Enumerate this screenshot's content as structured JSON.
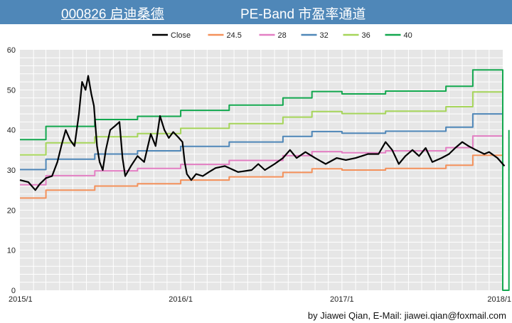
{
  "header": {
    "code_title": "000826 启迪桑德",
    "main_title": "PE-Band 市盈率通道"
  },
  "footer": {
    "credit": "by Jiawei Qian, E-Mail: jiawei.qian@foxmail.com"
  },
  "colors": {
    "header_bg": "#4f87b8",
    "plot_bg": "#e6e6e6",
    "grid": "#ffffff",
    "Close": "#000000",
    "24.5": "#f4915b",
    "28": "#e37fc3",
    "32": "#4f87b8",
    "36": "#a6d55a",
    "40": "#13a84f"
  },
  "chart_data": {
    "type": "line",
    "xlim": [
      "2015/1",
      "2018/1"
    ],
    "ylim": [
      0,
      60
    ],
    "y_ticks": [
      0,
      10,
      20,
      30,
      40,
      50,
      60
    ],
    "x_tick_labels": [
      "2015/1",
      "2016/1",
      "2017/1",
      "2018/1"
    ],
    "grid": true,
    "legend_position": "top",
    "legend": [
      "Close",
      "24.5",
      "28",
      "32",
      "36",
      "40"
    ],
    "series": [
      {
        "name": "Close",
        "points": [
          [
            "2015/1",
            27.5
          ],
          [
            "2015/1/20",
            27.0
          ],
          [
            "2015/2/5",
            25.0
          ],
          [
            "2015/2/15",
            26.5
          ],
          [
            "2015/3/1",
            28.0
          ],
          [
            "2015/3/15",
            28.5
          ],
          [
            "2015/3/27",
            32.0
          ],
          [
            "2015/4/5",
            36.0
          ],
          [
            "2015/4/15",
            40.0
          ],
          [
            "2015/4/25",
            37.5
          ],
          [
            "2015/5/5",
            36.0
          ],
          [
            "2015/5/15",
            44.0
          ],
          [
            "2015/5/22",
            52.0
          ],
          [
            "2015/5/30",
            50.0
          ],
          [
            "2015/6/5",
            53.5
          ],
          [
            "2015/6/12",
            49.0
          ],
          [
            "2015/6/18",
            46.0
          ],
          [
            "2015/6/25",
            36.0
          ],
          [
            "2015/7/1",
            32.0
          ],
          [
            "2015/7/8",
            30.0
          ],
          [
            "2015/7/15",
            35.0
          ],
          [
            "2015/7/25",
            40.0
          ],
          [
            "2015/8/5",
            41.0
          ],
          [
            "2015/8/15",
            42.0
          ],
          [
            "2015/8/22",
            33.0
          ],
          [
            "2015/8/28",
            28.5
          ],
          [
            "2015/9/10",
            31.0
          ],
          [
            "2015/9/25",
            33.5
          ],
          [
            "2015/10/10",
            32.0
          ],
          [
            "2015/10/25",
            39.0
          ],
          [
            "2015/11/5",
            36.0
          ],
          [
            "2015/11/15",
            43.5
          ],
          [
            "2015/11/25",
            40.0
          ],
          [
            "2015/12/5",
            38.0
          ],
          [
            "2015/12/15",
            39.5
          ],
          [
            "2015/12/28",
            38.0
          ],
          [
            "2016/1/5",
            37.0
          ],
          [
            "2016/1/10",
            32.0
          ],
          [
            "2016/1/15",
            29.0
          ],
          [
            "2016/1/25",
            27.5
          ],
          [
            "2016/2/5",
            29.0
          ],
          [
            "2016/2/20",
            28.5
          ],
          [
            "2016/3/5",
            29.5
          ],
          [
            "2016/3/20",
            30.5
          ],
          [
            "2016/4/10",
            31.0
          ],
          [
            "2016/5/10",
            29.5
          ],
          [
            "2016/6/10",
            30.0
          ],
          [
            "2016/6/25",
            31.5
          ],
          [
            "2016/7/10",
            30.0
          ],
          [
            "2016/8/1",
            31.5
          ],
          [
            "2016/8/20",
            33.0
          ],
          [
            "2016/9/5",
            35.0
          ],
          [
            "2016/9/20",
            33.0
          ],
          [
            "2016/10/10",
            34.5
          ],
          [
            "2016/11/1",
            33.0
          ],
          [
            "2016/11/25",
            31.5
          ],
          [
            "2016/12/20",
            33.0
          ],
          [
            "2017/1/10",
            32.5
          ],
          [
            "2017/2/1",
            33.0
          ],
          [
            "2017/3/1",
            34.0
          ],
          [
            "2017/3/25",
            34.0
          ],
          [
            "2017/4/10",
            37.0
          ],
          [
            "2017/4/25",
            35.0
          ],
          [
            "2017/5/10",
            31.5
          ],
          [
            "2017/5/25",
            33.5
          ],
          [
            "2017/6/10",
            35.0
          ],
          [
            "2017/6/25",
            33.5
          ],
          [
            "2017/7/10",
            35.5
          ],
          [
            "2017/7/25",
            32.0
          ],
          [
            "2017/8/15",
            33.0
          ],
          [
            "2017/9/1",
            34.0
          ],
          [
            "2017/9/15",
            35.5
          ],
          [
            "2017/10/1",
            37.0
          ],
          [
            "2017/10/15",
            36.0
          ],
          [
            "2017/11/1",
            35.0
          ],
          [
            "2017/11/20",
            34.0
          ],
          [
            "2017/12/1",
            34.5
          ],
          [
            "2017/12/20",
            33.0
          ],
          [
            "2018/1/5",
            31.0
          ]
        ]
      },
      {
        "name": "24.5",
        "points": [
          [
            "2015/1",
            23.0
          ],
          [
            "2015/3/1",
            23.0
          ],
          [
            "2015/3/1",
            25.0
          ],
          [
            "2015/6/20",
            25.0
          ],
          [
            "2015/6/20",
            26.0
          ],
          [
            "2015/9/25",
            26.0
          ],
          [
            "2015/9/25",
            26.6
          ],
          [
            "2016/1/1",
            26.6
          ],
          [
            "2016/1/1",
            27.5
          ],
          [
            "2016/4/20",
            27.5
          ],
          [
            "2016/4/20",
            28.3
          ],
          [
            "2016/8/20",
            28.3
          ],
          [
            "2016/8/20",
            29.4
          ],
          [
            "2016/10/25",
            29.4
          ],
          [
            "2016/10/25",
            30.3
          ],
          [
            "2017/1/1",
            30.3
          ],
          [
            "2017/1/1",
            30.0
          ],
          [
            "2017/4/10",
            30.0
          ],
          [
            "2017/4/10",
            30.4
          ],
          [
            "2017/8/25",
            30.4
          ],
          [
            "2017/8/25",
            31.2
          ],
          [
            "2017/10/25",
            31.2
          ],
          [
            "2017/10/25",
            33.7
          ],
          [
            "2018/1/1",
            33.7
          ]
        ]
      },
      {
        "name": "28",
        "points": [
          [
            "2015/1",
            26.3
          ],
          [
            "2015/3/1",
            26.3
          ],
          [
            "2015/3/1",
            28.6
          ],
          [
            "2015/6/20",
            28.6
          ],
          [
            "2015/6/20",
            29.8
          ],
          [
            "2015/9/25",
            29.8
          ],
          [
            "2015/9/25",
            30.4
          ],
          [
            "2016/1/1",
            30.4
          ],
          [
            "2016/1/1",
            31.4
          ],
          [
            "2016/4/20",
            31.4
          ],
          [
            "2016/4/20",
            32.4
          ],
          [
            "2016/8/20",
            32.4
          ],
          [
            "2016/8/20",
            33.6
          ],
          [
            "2016/10/25",
            33.6
          ],
          [
            "2016/10/25",
            34.6
          ],
          [
            "2017/1/1",
            34.6
          ],
          [
            "2017/1/1",
            34.3
          ],
          [
            "2017/4/10",
            34.3
          ],
          [
            "2017/4/10",
            34.8
          ],
          [
            "2017/8/25",
            34.8
          ],
          [
            "2017/8/25",
            35.6
          ],
          [
            "2017/10/25",
            35.6
          ],
          [
            "2017/10/25",
            38.5
          ],
          [
            "2018/1/1",
            38.5
          ]
        ]
      },
      {
        "name": "32",
        "points": [
          [
            "2015/1",
            30.1
          ],
          [
            "2015/3/1",
            30.1
          ],
          [
            "2015/3/1",
            32.7
          ],
          [
            "2015/6/20",
            32.7
          ],
          [
            "2015/6/20",
            34.0
          ],
          [
            "2015/9/25",
            34.0
          ],
          [
            "2015/9/25",
            34.8
          ],
          [
            "2016/1/1",
            34.8
          ],
          [
            "2016/1/1",
            35.9
          ],
          [
            "2016/4/20",
            35.9
          ],
          [
            "2016/4/20",
            37.0
          ],
          [
            "2016/8/20",
            37.0
          ],
          [
            "2016/8/20",
            38.4
          ],
          [
            "2016/10/25",
            38.4
          ],
          [
            "2016/10/25",
            39.6
          ],
          [
            "2017/1/1",
            39.6
          ],
          [
            "2017/1/1",
            39.2
          ],
          [
            "2017/4/10",
            39.2
          ],
          [
            "2017/4/10",
            39.7
          ],
          [
            "2017/8/25",
            39.7
          ],
          [
            "2017/8/25",
            40.7
          ],
          [
            "2017/10/25",
            40.7
          ],
          [
            "2017/10/25",
            44.0
          ],
          [
            "2018/1/1",
            44.0
          ]
        ]
      },
      {
        "name": "36",
        "points": [
          [
            "2015/1",
            33.8
          ],
          [
            "2015/3/1",
            33.8
          ],
          [
            "2015/3/1",
            36.8
          ],
          [
            "2015/6/20",
            36.8
          ],
          [
            "2015/6/20",
            38.3
          ],
          [
            "2015/9/25",
            38.3
          ],
          [
            "2015/9/25",
            39.1
          ],
          [
            "2016/1/1",
            39.1
          ],
          [
            "2016/1/1",
            40.4
          ],
          [
            "2016/4/20",
            40.4
          ],
          [
            "2016/4/20",
            41.6
          ],
          [
            "2016/8/20",
            41.6
          ],
          [
            "2016/8/20",
            43.2
          ],
          [
            "2016/10/25",
            43.2
          ],
          [
            "2016/10/25",
            44.6
          ],
          [
            "2017/1/1",
            44.6
          ],
          [
            "2017/1/1",
            44.1
          ],
          [
            "2017/4/10",
            44.1
          ],
          [
            "2017/4/10",
            44.7
          ],
          [
            "2017/8/25",
            44.7
          ],
          [
            "2017/8/25",
            45.8
          ],
          [
            "2017/10/25",
            45.8
          ],
          [
            "2017/10/25",
            49.5
          ],
          [
            "2018/1/1",
            49.5
          ]
        ]
      },
      {
        "name": "40",
        "points": [
          [
            "2015/1",
            37.6
          ],
          [
            "2015/3/1",
            37.6
          ],
          [
            "2015/3/1",
            40.9
          ],
          [
            "2015/6/20",
            40.9
          ],
          [
            "2015/6/20",
            42.6
          ],
          [
            "2015/9/25",
            42.6
          ],
          [
            "2015/9/25",
            43.4
          ],
          [
            "2016/1/1",
            43.4
          ],
          [
            "2016/1/1",
            44.9
          ],
          [
            "2016/4/20",
            44.9
          ],
          [
            "2016/4/20",
            46.2
          ],
          [
            "2016/8/20",
            46.2
          ],
          [
            "2016/8/20",
            48.0
          ],
          [
            "2016/10/25",
            48.0
          ],
          [
            "2016/10/25",
            49.6
          ],
          [
            "2017/1/1",
            49.6
          ],
          [
            "2017/1/1",
            49.0
          ],
          [
            "2017/4/10",
            49.0
          ],
          [
            "2017/4/10",
            49.7
          ],
          [
            "2017/8/25",
            49.7
          ],
          [
            "2017/8/25",
            50.9
          ],
          [
            "2017/10/25",
            50.9
          ],
          [
            "2017/10/25",
            55.0
          ],
          [
            "2018/1/1",
            55.0
          ],
          [
            "2018/1/1",
            0
          ],
          [
            "2018/1/15",
            0
          ],
          [
            "2018/1/15",
            40.0
          ]
        ]
      }
    ]
  }
}
